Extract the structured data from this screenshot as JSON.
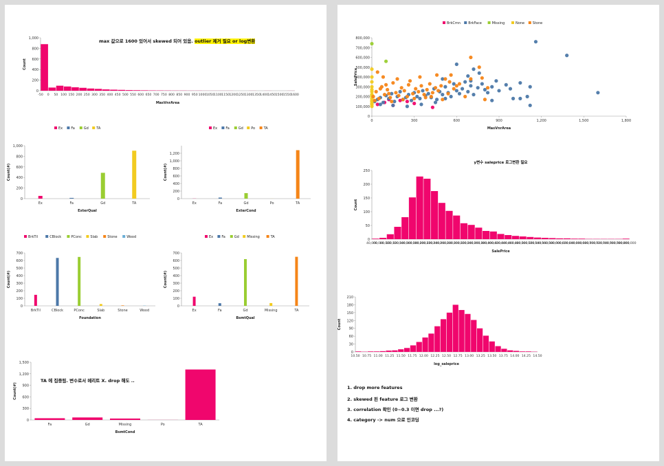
{
  "chart_data": [
    {
      "id": "masvnr-hist",
      "type": "bar",
      "title": "",
      "xlabel": "MasVnrArea",
      "ylabel": "Count",
      "ylim": [
        0,
        1000
      ],
      "yticks": [
        "0",
        "200",
        "400",
        "600",
        "800",
        "1,000"
      ],
      "xticks": [
        "-50",
        "0",
        "50",
        "100",
        "150",
        "200",
        "250",
        "300",
        "350",
        "400",
        "450",
        "500",
        "550",
        "600",
        "650",
        "700",
        "750",
        "800",
        "850",
        "900",
        "950",
        "1000",
        "1050",
        "1100",
        "1150",
        "1200",
        "1250",
        "1300",
        "1350",
        "1400",
        "1450",
        "1500",
        "1550",
        "1600"
      ],
      "values": [
        880,
        60,
        95,
        80,
        65,
        55,
        42,
        35,
        25,
        20,
        16,
        12,
        10,
        8,
        6,
        5,
        4,
        3,
        3,
        2,
        2,
        1,
        1,
        1,
        1,
        0,
        0,
        1,
        0,
        1,
        0,
        0,
        1
      ],
      "color": "#f0066d"
    },
    {
      "id": "exterqual",
      "type": "bar",
      "xlabel": "ExterQual",
      "ylabel": "Count(#)",
      "ylim": [
        0,
        1000
      ],
      "yticks": [
        "0",
        "200",
        "400",
        "600",
        "800",
        "1,000"
      ],
      "categories": [
        "Ex",
        "Fa",
        "Gd",
        "TA"
      ],
      "values": [
        52,
        14,
        488,
        906
      ],
      "colors": [
        "#f0066d",
        "#4c78a8",
        "#9acd32",
        "#f2cb20"
      ],
      "legend": [
        "Ex",
        "Fa",
        "Gd",
        "TA"
      ]
    },
    {
      "id": "extercond",
      "type": "bar",
      "xlabel": "ExterCond",
      "ylabel": "Count(#)",
      "ylim": [
        0,
        1400
      ],
      "yticks": [
        "0",
        "200",
        "400",
        "600",
        "800",
        "1,000",
        "1,200"
      ],
      "categories": [
        "Ex",
        "Fa",
        "Gd",
        "Po",
        "TA"
      ],
      "values": [
        3,
        28,
        146,
        1,
        1282
      ],
      "colors": [
        "#f0066d",
        "#4c78a8",
        "#9acd32",
        "#f2cb20",
        "#f58518"
      ],
      "legend": [
        "Ex",
        "Fa",
        "Gd",
        "Po",
        "TA"
      ]
    },
    {
      "id": "foundation",
      "type": "bar",
      "xlabel": "Foundation",
      "ylabel": "Count(#)",
      "ylim": [
        0,
        700
      ],
      "yticks": [
        "0",
        "100",
        "200",
        "300",
        "400",
        "500",
        "600",
        "700"
      ],
      "categories": [
        "BrkTil",
        "CBlock",
        "PConc",
        "Slab",
        "Stone",
        "Wood"
      ],
      "values": [
        146,
        634,
        647,
        24,
        6,
        3
      ],
      "colors": [
        "#f0066d",
        "#4c78a8",
        "#9acd32",
        "#f2cb20",
        "#f58518",
        "#6aaed6"
      ],
      "legend": [
        "BrkTil",
        "CBlock",
        "PConc",
        "Slab",
        "Stone",
        "Wood"
      ]
    },
    {
      "id": "bsmtqual",
      "type": "bar",
      "xlabel": "BsmtQual",
      "ylabel": "Count(#)",
      "ylim": [
        0,
        700
      ],
      "yticks": [
        "0",
        "100",
        "200",
        "300",
        "400",
        "500",
        "600",
        "700"
      ],
      "categories": [
        "Ex",
        "Fa",
        "Gd",
        "Missing",
        "TA"
      ],
      "values": [
        121,
        35,
        618,
        37,
        649
      ],
      "colors": [
        "#f0066d",
        "#4c78a8",
        "#9acd32",
        "#f2cb20",
        "#f58518"
      ],
      "legend": [
        "Ex",
        "Fa",
        "Gd",
        "Missing",
        "TA"
      ]
    },
    {
      "id": "bsmtcond",
      "type": "bar",
      "xlabel": "BsmtCond",
      "ylabel": "Count(#)",
      "ylim": [
        0,
        1500
      ],
      "yticks": [
        "0",
        "300",
        "600",
        "900",
        "1,200",
        "1,500"
      ],
      "categories": [
        "Fa",
        "Gd",
        "Missing",
        "Po",
        "TA"
      ],
      "values": [
        45,
        65,
        37,
        2,
        1311
      ],
      "color": "#f0066d"
    },
    {
      "id": "scatter",
      "type": "scatter",
      "xlabel": "MasVnrArea",
      "ylabel": "SalePrice",
      "xlim": [
        0,
        1800
      ],
      "ylim": [
        0,
        800000
      ],
      "xticks": [
        "0",
        "300",
        "600",
        "900",
        "1,200",
        "1,500",
        "1,800"
      ],
      "yticks": [
        "0",
        "100,000",
        "200,000",
        "300,000",
        "400,000",
        "500,000",
        "600,000",
        "700,000",
        "800,000"
      ],
      "legend": [
        "BrkCmn",
        "BrkFace",
        "Missing",
        "None",
        "Stone"
      ],
      "series": [
        {
          "name": "BrkCmn",
          "color": "#f0066d",
          "points": [
            [
              40,
              120000
            ],
            [
              90,
              140000
            ],
            [
              150,
              110000
            ],
            [
              200,
              160000
            ],
            [
              300,
              130000
            ],
            [
              430,
              90000
            ],
            [
              250,
              150000
            ],
            [
              120,
              170000
            ]
          ]
        },
        {
          "name": "BrkFace",
          "color": "#4c78a8",
          "points": [
            [
              20,
              150000
            ],
            [
              40,
              170000
            ],
            [
              60,
              190000
            ],
            [
              80,
              140000
            ],
            [
              100,
              210000
            ],
            [
              120,
              180000
            ],
            [
              140,
              230000
            ],
            [
              160,
              150000
            ],
            [
              180,
              200000
            ],
            [
              200,
              250000
            ],
            [
              220,
              170000
            ],
            [
              240,
              190000
            ],
            [
              260,
              220000
            ],
            [
              280,
              160000
            ],
            [
              300,
              240000
            ],
            [
              320,
              200000
            ],
            [
              340,
              180000
            ],
            [
              360,
              260000
            ],
            [
              380,
              210000
            ],
            [
              400,
              230000
            ],
            [
              420,
              190000
            ],
            [
              440,
              280000
            ],
            [
              460,
              170000
            ],
            [
              480,
              250000
            ],
            [
              500,
              220000
            ],
            [
              520,
              300000
            ],
            [
              540,
              240000
            ],
            [
              560,
              200000
            ],
            [
              580,
              330000
            ],
            [
              600,
              260000
            ],
            [
              620,
              230000
            ],
            [
              640,
              280000
            ],
            [
              660,
              350000
            ],
            [
              680,
              250000
            ],
            [
              700,
              310000
            ],
            [
              720,
              220000
            ],
            [
              750,
              290000
            ],
            [
              780,
              330000
            ],
            [
              800,
              270000
            ],
            [
              820,
              240000
            ],
            [
              850,
              300000
            ],
            [
              880,
              360000
            ],
            [
              900,
              260000
            ],
            [
              950,
              320000
            ],
            [
              980,
              280000
            ],
            [
              1000,
              180000
            ],
            [
              1050,
              340000
            ],
            [
              1100,
              200000
            ],
            [
              1120,
              300000
            ],
            [
              1160,
              760000
            ],
            [
              1380,
              620000
            ],
            [
              1600,
              240000
            ],
            [
              600,
              530000
            ],
            [
              700,
              360000
            ],
            [
              520,
              180000
            ],
            [
              450,
              140000
            ],
            [
              350,
              120000
            ],
            [
              250,
              100000
            ],
            [
              150,
              110000
            ],
            [
              60,
              120000
            ],
            [
              500,
              380000
            ],
            [
              760,
              440000
            ],
            [
              850,
              160000
            ],
            [
              1050,
              180000
            ],
            [
              1120,
              110000
            ],
            [
              680,
              410000
            ],
            [
              720,
              480000
            ]
          ]
        },
        {
          "name": "Missing",
          "color": "#9acd32",
          "points": [
            [
              0,
              740000
            ],
            [
              100,
              560000
            ],
            [
              0,
              210000
            ]
          ]
        },
        {
          "name": "None",
          "color": "#f2cb20",
          "points": [
            [
              0,
              100000
            ],
            [
              0,
              150000
            ],
            [
              0,
              200000
            ],
            [
              0,
              250000
            ],
            [
              0,
              300000
            ],
            [
              0,
              130000
            ],
            [
              0,
              180000
            ],
            [
              0,
              220000
            ],
            [
              0,
              350000
            ],
            [
              0,
              400000
            ],
            [
              0,
              480000
            ],
            [
              0,
              120000
            ],
            [
              0,
              160000
            ],
            [
              0,
              270000
            ]
          ]
        },
        {
          "name": "Stone",
          "color": "#f58518",
          "points": [
            [
              10,
              200000
            ],
            [
              30,
              250000
            ],
            [
              50,
              180000
            ],
            [
              70,
              300000
            ],
            [
              90,
              220000
            ],
            [
              110,
              270000
            ],
            [
              130,
              190000
            ],
            [
              150,
              340000
            ],
            [
              170,
              240000
            ],
            [
              190,
              210000
            ],
            [
              210,
              290000
            ],
            [
              230,
              260000
            ],
            [
              250,
              200000
            ],
            [
              270,
              360000
            ],
            [
              290,
              230000
            ],
            [
              310,
              280000
            ],
            [
              330,
              250000
            ],
            [
              350,
              310000
            ],
            [
              370,
              220000
            ],
            [
              390,
              270000
            ],
            [
              410,
              330000
            ],
            [
              430,
              240000
            ],
            [
              450,
              290000
            ],
            [
              470,
              260000
            ],
            [
              490,
              310000
            ],
            [
              520,
              380000
            ],
            [
              540,
              230000
            ],
            [
              560,
              420000
            ],
            [
              580,
              280000
            ],
            [
              620,
              330000
            ],
            [
              660,
              200000
            ],
            [
              700,
              380000
            ],
            [
              760,
              500000
            ],
            [
              780,
              390000
            ],
            [
              820,
              290000
            ],
            [
              20,
              160000
            ],
            [
              60,
              280000
            ],
            [
              100,
              320000
            ],
            [
              140,
              150000
            ],
            [
              180,
              380000
            ],
            [
              220,
              170000
            ],
            [
              260,
              320000
            ],
            [
              300,
              180000
            ],
            [
              340,
              400000
            ],
            [
              380,
              190000
            ],
            [
              420,
              200000
            ],
            [
              460,
              420000
            ],
            [
              500,
              170000
            ],
            [
              550,
              350000
            ],
            [
              700,
              600000
            ],
            [
              600,
              310000
            ],
            [
              800,
              170000
            ],
            [
              40,
              450000
            ],
            [
              80,
              400000
            ],
            [
              120,
              230000
            ]
          ]
        }
      ]
    },
    {
      "id": "saleprice-hist",
      "type": "bar",
      "title": "y변수 saleprice 로그변환 필요",
      "xlabel": "SalePrice",
      "ylabel": "Count",
      "ylim": [
        0,
        250
      ],
      "yticks": [
        "0",
        "50",
        "100",
        "150",
        "200",
        "250"
      ],
      "xticks": [
        "40,000",
        "60,000",
        "80,000",
        "100,000",
        "120,000",
        "140,000",
        "160,000",
        "180,000",
        "200,000",
        "220,000",
        "240,000",
        "260,000",
        "280,000",
        "300,000",
        "320,000",
        "340,000",
        "360,000",
        "380,000",
        "400,000",
        "420,000",
        "440,000",
        "460,000",
        "480,000",
        "500,000",
        "520,000",
        "540,000",
        "560,000",
        "580,000",
        "600,000",
        "620,000",
        "640,000",
        "660,000",
        "680,000",
        "700,000",
        "720,000",
        "740,000",
        "760,000",
        "780,000",
        "800,000"
      ],
      "values": [
        2,
        5,
        18,
        45,
        80,
        152,
        228,
        220,
        175,
        132,
        103,
        86,
        58,
        52,
        42,
        30,
        28,
        19,
        15,
        12,
        10,
        8,
        6,
        5,
        4,
        3,
        3,
        2,
        2,
        1,
        1,
        1,
        1,
        1,
        2
      ],
      "color": "#f0066d"
    },
    {
      "id": "log-saleprice-hist",
      "type": "bar",
      "xlabel": "log_saleprice",
      "ylabel": "Count",
      "ylim": [
        0,
        210
      ],
      "yticks": [
        "0",
        "30",
        "60",
        "90",
        "120",
        "150",
        "180",
        "210"
      ],
      "xticks": [
        "10.50",
        "10.75",
        "11.00",
        "11.25",
        "11.50",
        "11.75",
        "12.00",
        "12.25",
        "12.50",
        "12.75",
        "13.00",
        "13.25",
        "13.50",
        "13.75",
        "14.00",
        "14.25",
        "14.50"
      ],
      "values": [
        2,
        1,
        2,
        2,
        3,
        5,
        6,
        10,
        15,
        25,
        38,
        55,
        70,
        98,
        125,
        150,
        180,
        160,
        145,
        122,
        90,
        62,
        40,
        22,
        12,
        6,
        4,
        2,
        2,
        1
      ],
      "color": "#f0066d"
    }
  ],
  "notes": {
    "masvnr_note": "max 값으로 1600 있어서 skewed 되어 있음.",
    "masvnr_note_hl": "outlier 제거 필요 or log변환",
    "bsmtcond_note": "TA 에 집중됨. 변수로서 메리트 X. drop 해도 .."
  },
  "todo": [
    "1. drop more features",
    "2. skewed 된 feature 로그 변환",
    "3. correlation 확인 (0~0.3 이면 drop ...?)",
    "4. category -> num 으로 인코딩"
  ]
}
